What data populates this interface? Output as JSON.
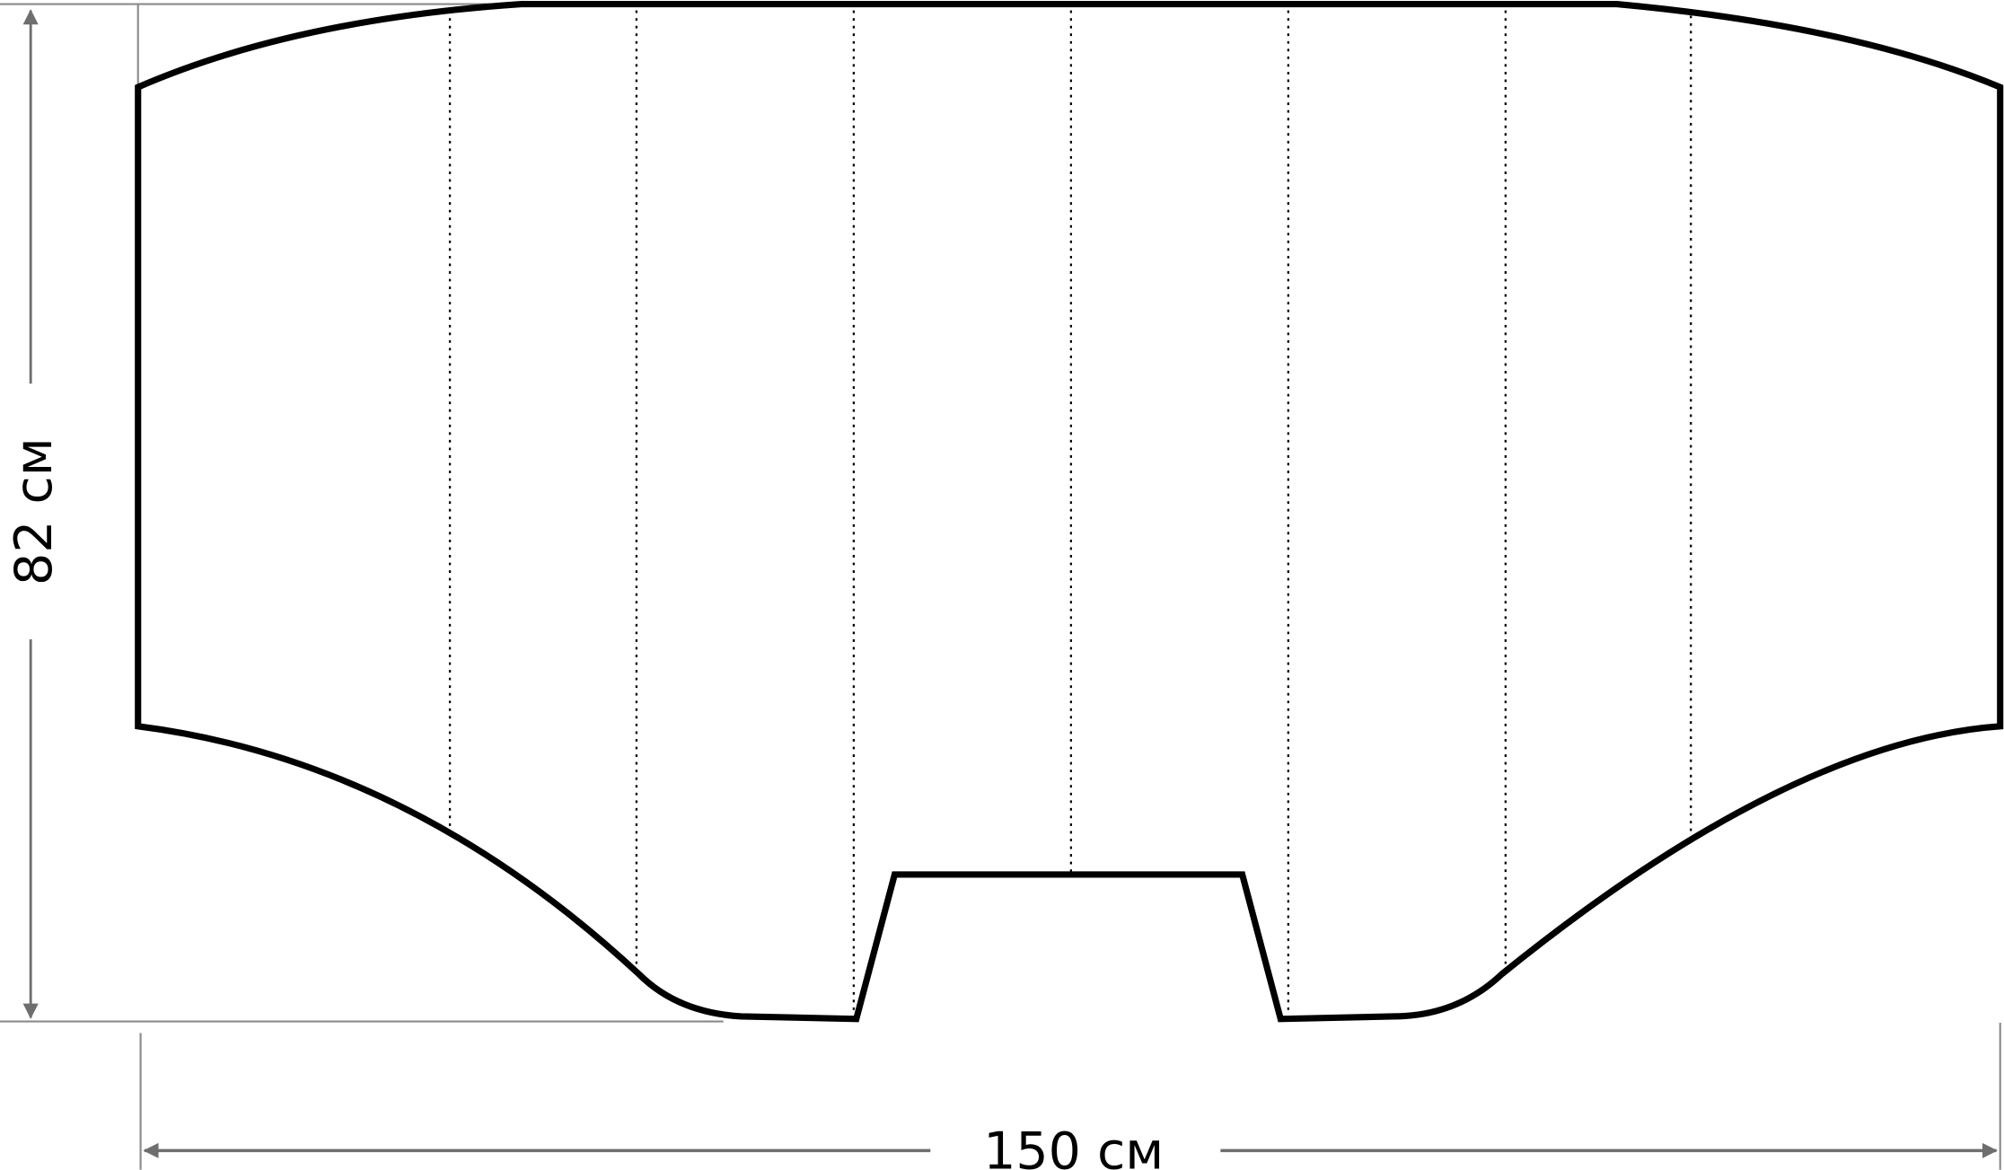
{
  "diagram": {
    "dimensions": {
      "height_label": "82 см",
      "width_label": "150 см"
    },
    "colors": {
      "outline": "#000000",
      "dimension_line": "#6e6e6e",
      "background": "#ffffff"
    },
    "fold_line_count": 7
  }
}
